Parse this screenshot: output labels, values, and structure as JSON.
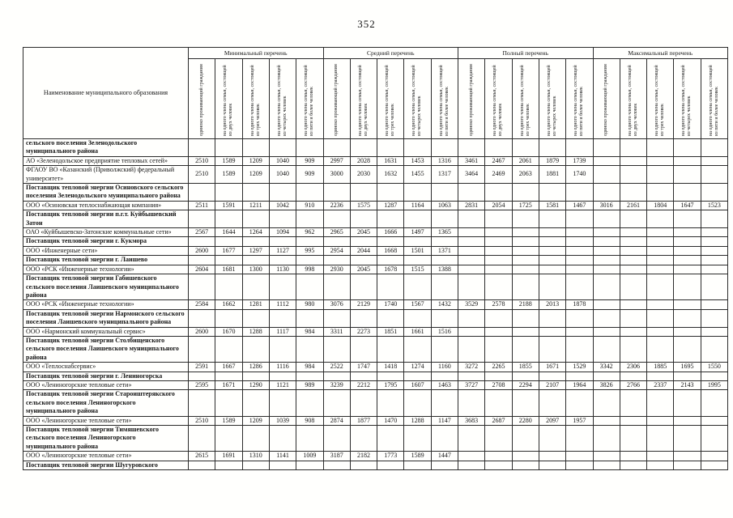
{
  "page": {
    "number": "352"
  },
  "table": {
    "name_header": "Наименование муниципального образования",
    "groups": [
      {
        "label": "Минимальный перечень"
      },
      {
        "label": "Средний перечень"
      },
      {
        "label": "Полный перечень"
      },
      {
        "label": "Максимальный перечень"
      }
    ],
    "sub_headers": [
      "одиноко проживающий гражданин",
      "на одного члена семьи, состоящей из двух человек",
      "на одного члена семьи, состоящей из трех человек",
      "на одного члена семьи, состоящей из четырех человек",
      "на одного члена семьи, состоящей из пяти и более человек"
    ],
    "rows": [
      {
        "type": "section",
        "name": "сельского поселения Зеленодольского муниципального района"
      },
      {
        "type": "data",
        "name": "АО «Зеленодольское предприятие тепловых сетей»",
        "values": [
          "2510",
          "1589",
          "1209",
          "1040",
          "909",
          "2997",
          "2028",
          "1631",
          "1453",
          "1316",
          "3461",
          "2467",
          "2061",
          "1879",
          "1739"
        ]
      },
      {
        "type": "data",
        "name": "ФГАОУ ВО «Казанский (Приволжский) федеральный университет»",
        "values": [
          "2510",
          "1589",
          "1209",
          "1040",
          "909",
          "3000",
          "2030",
          "1632",
          "1455",
          "1317",
          "3464",
          "2469",
          "2063",
          "1881",
          "1740"
        ]
      },
      {
        "type": "section",
        "name": "Поставщик тепловой энергии Осиновского сельского поселения Зеленодольского муниципального района"
      },
      {
        "type": "data",
        "name": "ООО «Осиновская теплоснабжающая компания»",
        "values": [
          "2511",
          "1591",
          "1211",
          "1042",
          "910",
          "2236",
          "1575",
          "1287",
          "1164",
          "1063",
          "2831",
          "2054",
          "1725",
          "1581",
          "1467",
          "3016",
          "2161",
          "1804",
          "1647",
          "1523"
        ]
      },
      {
        "type": "section",
        "name": "Поставщик тепловой энергии п.г.т. Куйбышевский Затон"
      },
      {
        "type": "data",
        "name": "ОАО «Куйбышевско-Затонские коммунальные сети»",
        "values": [
          "2567",
          "1644",
          "1264",
          "1094",
          "962",
          "2965",
          "2045",
          "1666",
          "1497",
          "1365"
        ]
      },
      {
        "type": "section",
        "name": "Поставщик тепловой энергии г. Кукмора"
      },
      {
        "type": "data",
        "name": "ООО «Инженерные сети»",
        "values": [
          "2600",
          "1677",
          "1297",
          "1127",
          "995",
          "2954",
          "2044",
          "1668",
          "1501",
          "1371"
        ]
      },
      {
        "type": "section",
        "name": "Поставщик тепловой энергии г. Лаишево"
      },
      {
        "type": "data",
        "name": "ООО «РСК «Инженерные технологии»",
        "values": [
          "2604",
          "1681",
          "1300",
          "1130",
          "998",
          "2930",
          "2045",
          "1678",
          "1515",
          "1388"
        ]
      },
      {
        "type": "section",
        "name": "Поставщик тепловой энергии Габишевского сельского поселения Лаишевского муниципального района"
      },
      {
        "type": "data",
        "name": "ООО «РСК «Инженерные технологии»",
        "values": [
          "2584",
          "1662",
          "1281",
          "1112",
          "980",
          "3076",
          "2129",
          "1740",
          "1567",
          "1432",
          "3529",
          "2578",
          "2188",
          "2013",
          "1878"
        ]
      },
      {
        "type": "section",
        "name": "Поставщик тепловой энергии Нармонского сельского поселения Лаишевского муниципального района"
      },
      {
        "type": "data",
        "name": "ООО «Нармонский коммунальный сервис»",
        "values": [
          "2600",
          "1670",
          "1288",
          "1117",
          "984",
          "3311",
          "2273",
          "1851",
          "1661",
          "1516"
        ]
      },
      {
        "type": "section",
        "name": "Поставщик тепловой энергии Столбищенского сельского поселения Лаишевского муниципального района"
      },
      {
        "type": "data",
        "name": "ООО «Теплоснабсервис»",
        "values": [
          "2591",
          "1667",
          "1286",
          "1116",
          "984",
          "2522",
          "1747",
          "1418",
          "1274",
          "1160",
          "3272",
          "2265",
          "1855",
          "1671",
          "1529",
          "3342",
          "2306",
          "1885",
          "1695",
          "1550"
        ]
      },
      {
        "type": "section",
        "name": "Поставщик тепловой энергии г. Лениногорска"
      },
      {
        "type": "data",
        "name": "ООО «Лениногорские тепловые сети»",
        "values": [
          "2595",
          "1671",
          "1290",
          "1121",
          "989",
          "3239",
          "2212",
          "1795",
          "1607",
          "1463",
          "3727",
          "2708",
          "2294",
          "2107",
          "1964",
          "3826",
          "2766",
          "2337",
          "2143",
          "1995"
        ]
      },
      {
        "type": "section",
        "name": "Поставщик тепловой энергии Староиштерякского сельского поселения Лениногорского муниципального района"
      },
      {
        "type": "data",
        "name": "ООО «Лениногорские тепловые сети»",
        "values": [
          "2510",
          "1589",
          "1209",
          "1039",
          "908",
          "2874",
          "1877",
          "1470",
          "1288",
          "1147",
          "3683",
          "2687",
          "2280",
          "2097",
          "1957"
        ]
      },
      {
        "type": "section",
        "name": "Поставщик тепловой энергии Тимяшевского сельского поселения Лениногорского муниципального района"
      },
      {
        "type": "data",
        "name": "ООО «Лениногорские тепловые сети»",
        "values": [
          "2615",
          "1691",
          "1310",
          "1141",
          "1009",
          "3187",
          "2182",
          "1773",
          "1589",
          "1447"
        ]
      },
      {
        "type": "section",
        "name": "Поставщик тепловой энергии Шугуровского"
      }
    ]
  }
}
